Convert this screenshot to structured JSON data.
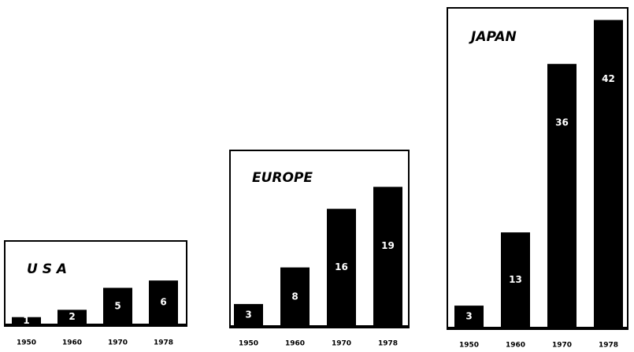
{
  "chart_data": [
    {
      "type": "bar",
      "title": "U S A",
      "categories": [
        "1950",
        "1960",
        "1970",
        "1978"
      ],
      "values": [
        1,
        2,
        5,
        6
      ],
      "color": "#000000"
    },
    {
      "type": "bar",
      "title": "EUROPE",
      "categories": [
        "1950",
        "1960",
        "1970",
        "1978"
      ],
      "values": [
        3,
        8,
        16,
        19
      ],
      "color": "#000000"
    },
    {
      "type": "bar",
      "title": "JAPAN",
      "categories": [
        "1950",
        "1960",
        "1970",
        "1978"
      ],
      "values": [
        3,
        13,
        36,
        42
      ],
      "color": "#000000"
    }
  ]
}
